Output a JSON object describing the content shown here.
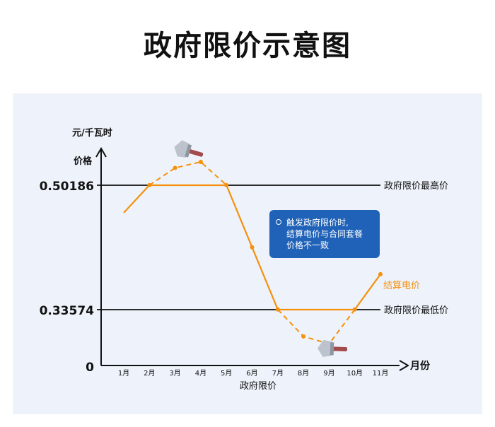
{
  "title": "政府限价示意图",
  "chart_data": {
    "type": "line",
    "y_unit_line1": "元/千瓦时",
    "y_unit_line2": "价格",
    "x_unit": "月份",
    "x_caption": "政府限价",
    "categories": [
      "1月",
      "2月",
      "3月",
      "4月",
      "5月",
      "6月",
      "7月",
      "8月",
      "9月",
      "10月",
      "11月"
    ],
    "y_zero_label": "0",
    "cap_high": {
      "value": 0.50186,
      "label": "0.50186",
      "name": "政府限价最高价"
    },
    "cap_low": {
      "value": 0.33574,
      "label": "0.33574",
      "name": "政府限价最低价"
    },
    "series_name": "结算电价",
    "market_price": [
      0.465,
      0.502,
      0.525,
      0.533,
      0.502,
      0.419,
      0.336,
      0.3,
      0.29,
      0.336,
      0.383
    ],
    "colors": {
      "line": "#f5900c",
      "axis": "#111111",
      "callout": "#1f62b8",
      "panel": "#eef3fb"
    },
    "callout_lines": [
      "触发政府限价时,",
      "结算电价与合同套餐",
      "价格不一致"
    ],
    "icons": [
      "gavel-icon-top",
      "gavel-icon-bottom"
    ]
  }
}
